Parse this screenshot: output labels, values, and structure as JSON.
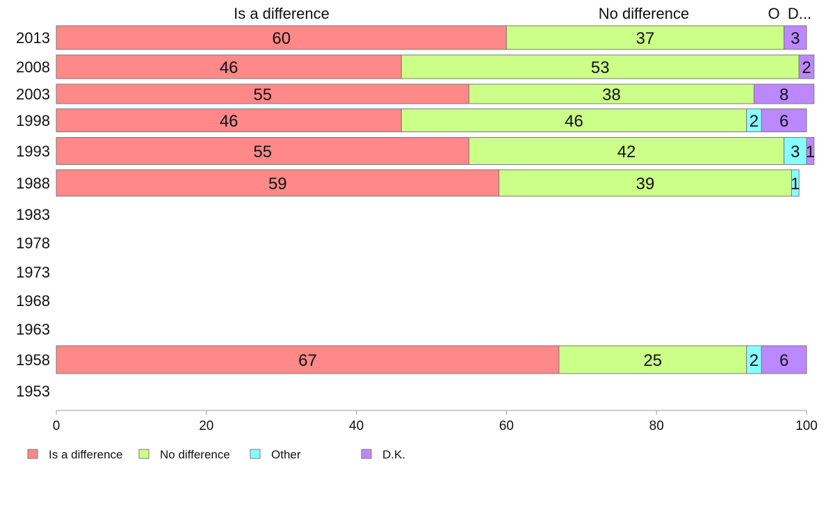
{
  "chart_data": {
    "type": "bar",
    "orientation": "horizontal",
    "stacked": true,
    "categories": [
      "2013",
      "2008",
      "2003",
      "1998",
      "1993",
      "1988",
      "1983",
      "1978",
      "1973",
      "1968",
      "1963",
      "1958",
      "1953"
    ],
    "series": [
      {
        "name": "Is a difference",
        "color": "#ff8888",
        "values": [
          60,
          46,
          55,
          46,
          55,
          59,
          null,
          null,
          null,
          null,
          null,
          67,
          null
        ]
      },
      {
        "name": "No difference",
        "color": "#ccff88",
        "values": [
          37,
          53,
          38,
          46,
          42,
          39,
          null,
          null,
          null,
          null,
          null,
          25,
          null
        ]
      },
      {
        "name": "Other",
        "color": "#88ffff",
        "values": [
          0,
          0,
          0,
          2,
          3,
          1,
          null,
          null,
          null,
          null,
          null,
          2,
          null
        ]
      },
      {
        "name": "D.K.",
        "color": "#bb88ff",
        "values": [
          3,
          2,
          8,
          6,
          1,
          0,
          null,
          null,
          null,
          null,
          null,
          6,
          null
        ]
      }
    ],
    "column_headers": [
      "Is a difference",
      "No difference",
      "O",
      "D..."
    ],
    "x_ticks": [
      "0",
      "20",
      "40",
      "60",
      "80",
      "100"
    ],
    "xlim": [
      0,
      100
    ],
    "legend": {
      "position": "bottom-left",
      "entries": [
        "Is a difference",
        "No difference",
        "Other",
        "D.K."
      ]
    },
    "grid": false
  }
}
